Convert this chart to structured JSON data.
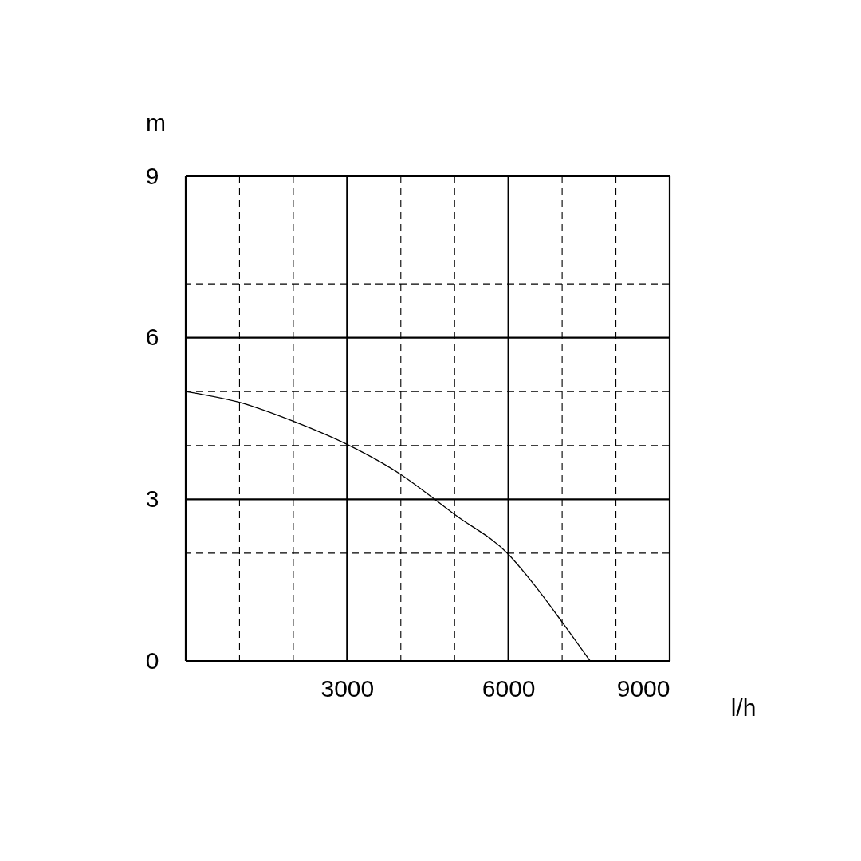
{
  "chart_data": {
    "type": "line",
    "xlabel": "l/h",
    "ylabel": "m",
    "x": [
      0,
      1000,
      2000,
      3000,
      4000,
      4630,
      5000,
      6000,
      6500,
      7000,
      7520
    ],
    "series": [
      {
        "color": "#000000",
        "values": [
          5.0,
          4.8,
          4.45,
          4.02,
          3.46,
          3.0,
          2.72,
          1.98,
          1.39,
          0.72,
          0
        ]
      }
    ],
    "xlim": [
      0,
      9000
    ],
    "ylim": [
      0,
      9
    ],
    "xticks": [
      {
        "value": 0,
        "label": null
      },
      {
        "value": 1000,
        "label": null
      },
      {
        "value": 2000,
        "label": null
      },
      3000,
      {
        "value": 4000,
        "label": null
      },
      {
        "value": 5000,
        "label": null
      },
      6000,
      {
        "value": 7000,
        "label": null
      },
      {
        "value": 8000,
        "label": null
      },
      9000
    ],
    "yticks": [
      0,
      {
        "value": 1,
        "label": null
      },
      {
        "value": 2,
        "label": null
      },
      3,
      {
        "value": 4,
        "label": null
      },
      {
        "value": 5,
        "label": null
      },
      6,
      {
        "value": 7,
        "label": null
      },
      {
        "value": 8,
        "label": null
      },
      9
    ],
    "grid": true
  }
}
